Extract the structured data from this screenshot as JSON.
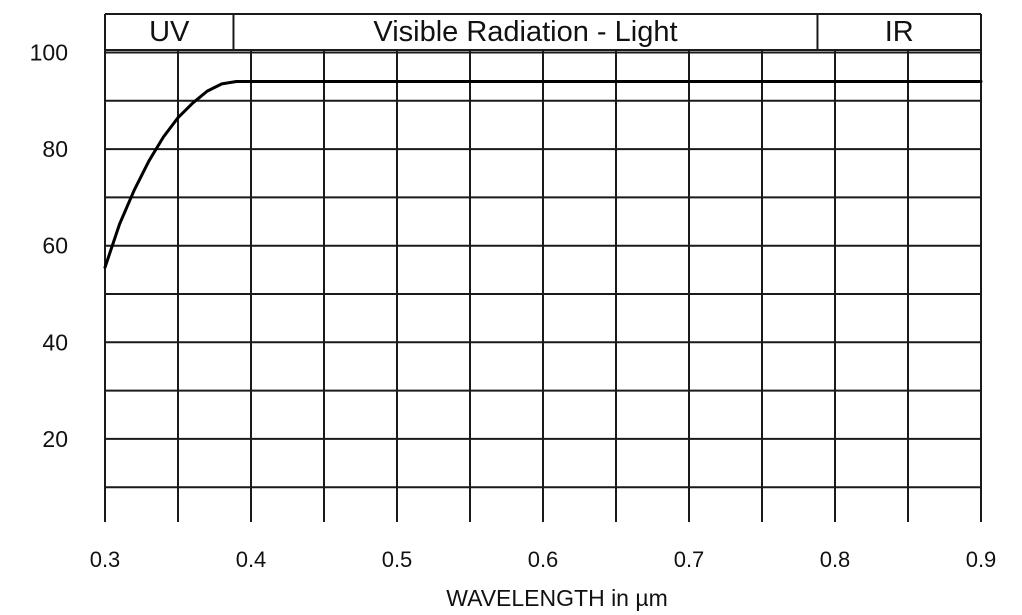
{
  "chart_data": {
    "type": "line",
    "title": "",
    "xlabel": "WAVELENGTH in µm",
    "ylabel": "",
    "xlim": [
      0.3,
      0.9
    ],
    "ylim": [
      0,
      100
    ],
    "x_ticks": [
      0.3,
      0.4,
      0.5,
      0.6,
      0.7,
      0.8,
      0.9
    ],
    "x_tick_labels": [
      "0.3",
      "0.4",
      "0.5",
      "0.6",
      "0.7",
      "0.8",
      "0.9"
    ],
    "x_minor_grid": [
      0.35,
      0.45,
      0.55,
      0.65,
      0.75,
      0.85
    ],
    "y_ticks": [
      20,
      40,
      60,
      80,
      100
    ],
    "y_tick_labels": [
      "20",
      "40",
      "60",
      "80",
      "100"
    ],
    "y_minor_grid": [
      10,
      30,
      50,
      70,
      90
    ],
    "grid": true,
    "legend": "none",
    "bands": [
      {
        "label": "UV",
        "from": 0.3,
        "to": 0.388
      },
      {
        "label": "Visible Radiation - Light",
        "from": 0.388,
        "to": 0.788
      },
      {
        "label": "IR",
        "from": 0.788,
        "to": 0.9
      }
    ],
    "series": [
      {
        "color": "#000000",
        "x": [
          0.3,
          0.31,
          0.32,
          0.33,
          0.34,
          0.35,
          0.36,
          0.37,
          0.38,
          0.39,
          0.4,
          0.5,
          0.6,
          0.7,
          0.8,
          0.9
        ],
        "y": [
          55.5,
          64.5,
          71.5,
          77.5,
          82.5,
          86.5,
          89.5,
          92.0,
          93.5,
          94.0,
          94.0,
          94.0,
          94.0,
          94.0,
          94.0,
          94.0
        ]
      }
    ]
  }
}
